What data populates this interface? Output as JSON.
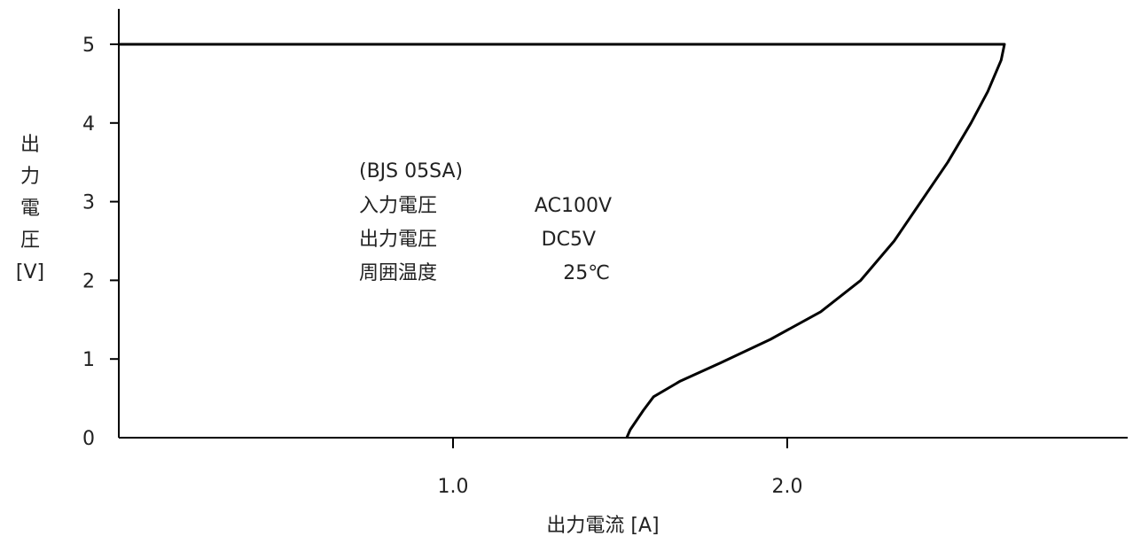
{
  "chart_data": {
    "type": "line",
    "xlabel": "出力電流 [A]",
    "ylabel_chars": [
      "出",
      "力",
      "電",
      "圧"
    ],
    "ylabel_unit": "[V]",
    "xlim": [
      0,
      3.0
    ],
    "ylim": [
      0,
      5.45
    ],
    "x_ticks": [
      {
        "value": 1.0,
        "label": "1.0"
      },
      {
        "value": 2.0,
        "label": "2.0"
      }
    ],
    "y_ticks": [
      {
        "value": 0,
        "label": "0"
      },
      {
        "value": 1,
        "label": "1"
      },
      {
        "value": 2,
        "label": "2"
      },
      {
        "value": 3,
        "label": "3"
      },
      {
        "value": 4,
        "label": "4"
      },
      {
        "value": 5,
        "label": "5"
      }
    ],
    "grid": false,
    "series": [
      {
        "color": "#000000",
        "points": [
          [
            0.0,
            5.0
          ],
          [
            2.65,
            5.0
          ],
          [
            2.64,
            4.8
          ],
          [
            2.6,
            4.4
          ],
          [
            2.55,
            4.0
          ],
          [
            2.48,
            3.5
          ],
          [
            2.4,
            3.0
          ],
          [
            2.32,
            2.5
          ],
          [
            2.22,
            2.0
          ],
          [
            2.1,
            1.6
          ],
          [
            1.95,
            1.25
          ],
          [
            1.8,
            0.95
          ],
          [
            1.68,
            0.72
          ],
          [
            1.6,
            0.52
          ],
          [
            1.57,
            0.35
          ],
          [
            1.53,
            0.1
          ],
          [
            1.52,
            0.0
          ]
        ]
      }
    ],
    "annotation": {
      "model": "(BJS 05SA)",
      "rows": [
        {
          "label": "入力電圧",
          "value": "AC100V"
        },
        {
          "label": "出力電圧",
          "value": "DC5V"
        },
        {
          "label": "周囲温度",
          "value": "25℃"
        }
      ]
    }
  }
}
